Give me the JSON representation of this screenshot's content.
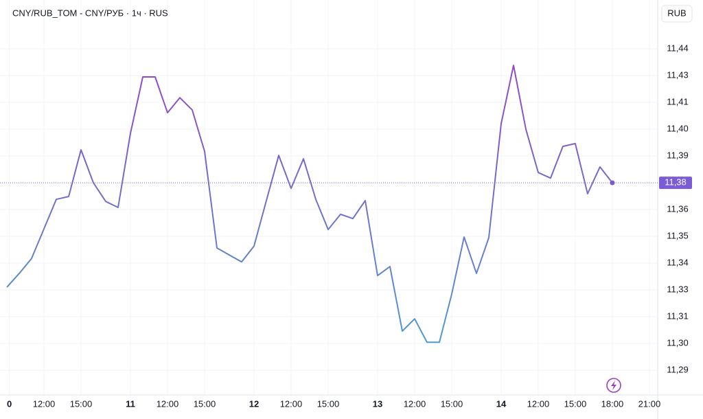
{
  "chart_data": {
    "type": "line",
    "title": "CNY/RUB_TOM - CNY/РУБ · 1ч · RUS",
    "currency": "RUB",
    "gradient": [
      "#9a3fc4",
      "#4a9fd0"
    ],
    "grid": true,
    "x": [
      0,
      1,
      2,
      3,
      4,
      5,
      6,
      7,
      8,
      9,
      10,
      11,
      12,
      13,
      14,
      15,
      16,
      17,
      18,
      19,
      20,
      21,
      22,
      23,
      24,
      25,
      26,
      27,
      28,
      29,
      30,
      31,
      32,
      33,
      34,
      35,
      36,
      37,
      38,
      39,
      40,
      41,
      42,
      43,
      44,
      45,
      46,
      47,
      48,
      49
    ],
    "values": [
      11.3288,
      11.3352,
      11.3422,
      11.356,
      11.3698,
      11.3711,
      11.3929,
      11.3775,
      11.3688,
      11.366,
      11.4006,
      11.4269,
      11.4269,
      11.4102,
      11.4172,
      11.4115,
      11.3922,
      11.3471,
      11.3438,
      11.3406,
      11.348,
      11.3692,
      11.3903,
      11.3749,
      11.3887,
      11.3698,
      11.3557,
      11.3628,
      11.3608,
      11.3692,
      11.3342,
      11.3384,
      11.3083,
      11.314,
      11.3031,
      11.3031,
      11.3256,
      11.3522,
      11.3352,
      11.3519,
      11.4051,
      11.4323,
      11.4025,
      11.3823,
      11.3797,
      11.3945,
      11.3958,
      11.3724,
      11.3849,
      11.3775
    ],
    "current_price": {
      "value": 11.3775,
      "label": "11,38"
    },
    "xlim": [
      -0.556,
      52.67
    ],
    "ylim": [
      11.2785,
      11.4628
    ],
    "xticks": [
      {
        "value": 0.2,
        "label": "0"
      },
      {
        "value": 3,
        "label": "12:00"
      },
      {
        "value": 6,
        "label": "15:00"
      },
      {
        "value": 10,
        "label": "11"
      },
      {
        "value": 13,
        "label": "12:00"
      },
      {
        "value": 16,
        "label": "15:00"
      },
      {
        "value": 20,
        "label": "12"
      },
      {
        "value": 23,
        "label": "12:00"
      },
      {
        "value": 26,
        "label": "15:00"
      },
      {
        "value": 30,
        "label": "13"
      },
      {
        "value": 33,
        "label": "12:00"
      },
      {
        "value": 36,
        "label": "15:00"
      },
      {
        "value": 40,
        "label": "14"
      },
      {
        "value": 43,
        "label": "12:00"
      },
      {
        "value": 46,
        "label": "15:00"
      },
      {
        "value": 49,
        "label": "18:00"
      },
      {
        "value": 52,
        "label": "21:00"
      }
    ],
    "yticks": [
      {
        "value": 11.29,
        "label": "11,29"
      },
      {
        "value": 11.3025,
        "label": "11,30"
      },
      {
        "value": 11.315,
        "label": "11,31"
      },
      {
        "value": 11.3275,
        "label": "11,33"
      },
      {
        "value": 11.34,
        "label": "11,34"
      },
      {
        "value": 11.3525,
        "label": "11,35"
      },
      {
        "value": 11.365,
        "label": "11,36"
      },
      {
        "value": 11.39,
        "label": "11,39"
      },
      {
        "value": 11.4025,
        "label": "11,40"
      },
      {
        "value": 11.415,
        "label": "11,41"
      },
      {
        "value": 11.4275,
        "label": "11,43"
      },
      {
        "value": 11.44,
        "label": "11,44"
      }
    ]
  }
}
